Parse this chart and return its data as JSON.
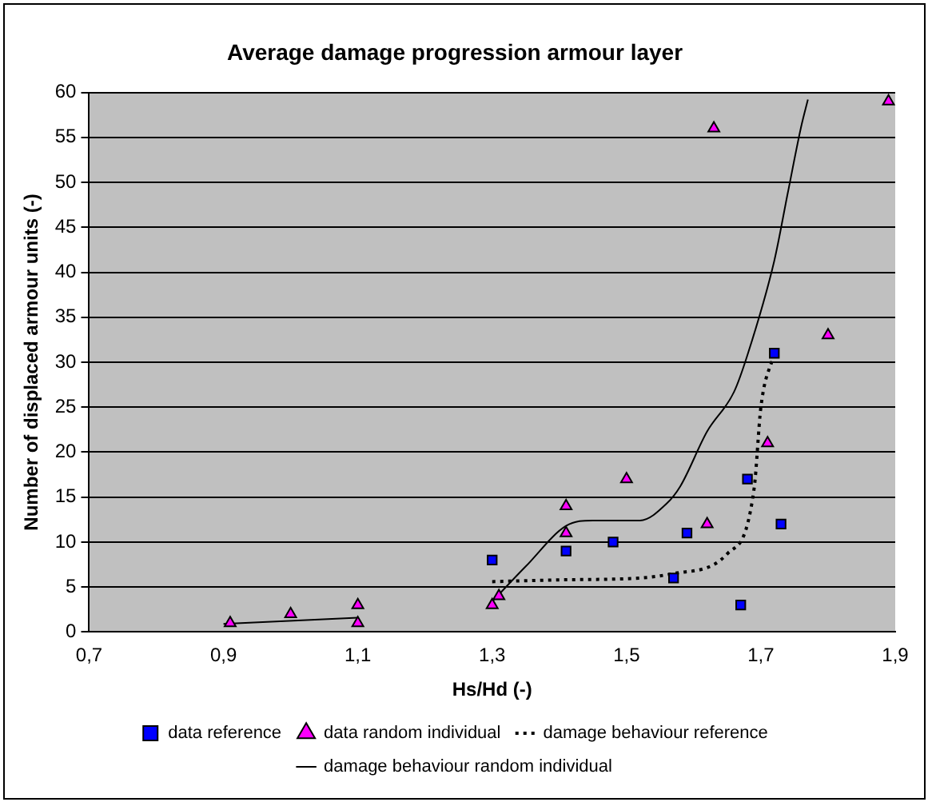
{
  "chart_data": {
    "type": "scatter",
    "title": "Average damage progression armour layer",
    "xlabel": "Hs/Hd (-)",
    "ylabel": "Number of displaced armour units (-)",
    "xlim": [
      0.7,
      1.9
    ],
    "xticks": [
      {
        "value": 0.7,
        "label": "0,7"
      },
      {
        "value": 0.9,
        "label": "0,9"
      },
      {
        "value": 1.1,
        "label": "1,1"
      },
      {
        "value": 1.3,
        "label": "1,3"
      },
      {
        "value": 1.5,
        "label": "1,5"
      },
      {
        "value": 1.7,
        "label": "1,7"
      },
      {
        "value": 1.9,
        "label": "1,9"
      }
    ],
    "ylim": [
      0,
      60
    ],
    "yticks": [
      0,
      5,
      10,
      15,
      20,
      25,
      30,
      35,
      40,
      45,
      50,
      55,
      60
    ],
    "grid": "y",
    "legend": "bottom",
    "series": [
      {
        "name": "data reference",
        "marker": "square",
        "color": "#0000ff",
        "x": [
          1.3,
          1.41,
          1.48,
          1.57,
          1.59,
          1.67,
          1.68,
          1.72,
          1.73
        ],
        "values": [
          8,
          9,
          10,
          6,
          11,
          3,
          17,
          31,
          12
        ]
      },
      {
        "name": "data random individual",
        "marker": "triangle",
        "color": "#ff00ff",
        "x": [
          0.91,
          1.0,
          1.1,
          1.1,
          1.3,
          1.31,
          1.41,
          1.41,
          1.5,
          1.62,
          1.63,
          1.71,
          1.8,
          1.89
        ],
        "values": [
          1,
          2,
          3,
          1,
          3,
          4,
          14,
          11,
          17,
          12,
          56,
          21,
          33,
          59
        ]
      },
      {
        "name": "damage behaviour reference",
        "type": "line",
        "marker": "none",
        "line_style": "dotted",
        "color": "#000000",
        "x": [
          1.3,
          1.4,
          1.52,
          1.57,
          1.65,
          1.69,
          1.7,
          1.72
        ],
        "values": [
          5.6,
          5.8,
          6.0,
          6.5,
          8.7,
          16,
          25,
          31
        ]
      },
      {
        "name": "damage behaviour random individual",
        "type": "line",
        "marker": "none",
        "line_style": "solid",
        "color": "#000000",
        "x": [
          0.9,
          1.1,
          1.2,
          1.3,
          1.35,
          1.41,
          1.45,
          1.52,
          1.56,
          1.58,
          1.62,
          1.66,
          1.68,
          1.72,
          1.74,
          1.76,
          1.77
        ],
        "values": [
          0.9,
          1.6,
          null,
          3.4,
          7.3,
          11.8,
          12.4,
          12.4,
          14.3,
          16.2,
          22.3,
          26.7,
          30.8,
          41.3,
          48.8,
          56.2,
          59.2
        ]
      }
    ]
  }
}
